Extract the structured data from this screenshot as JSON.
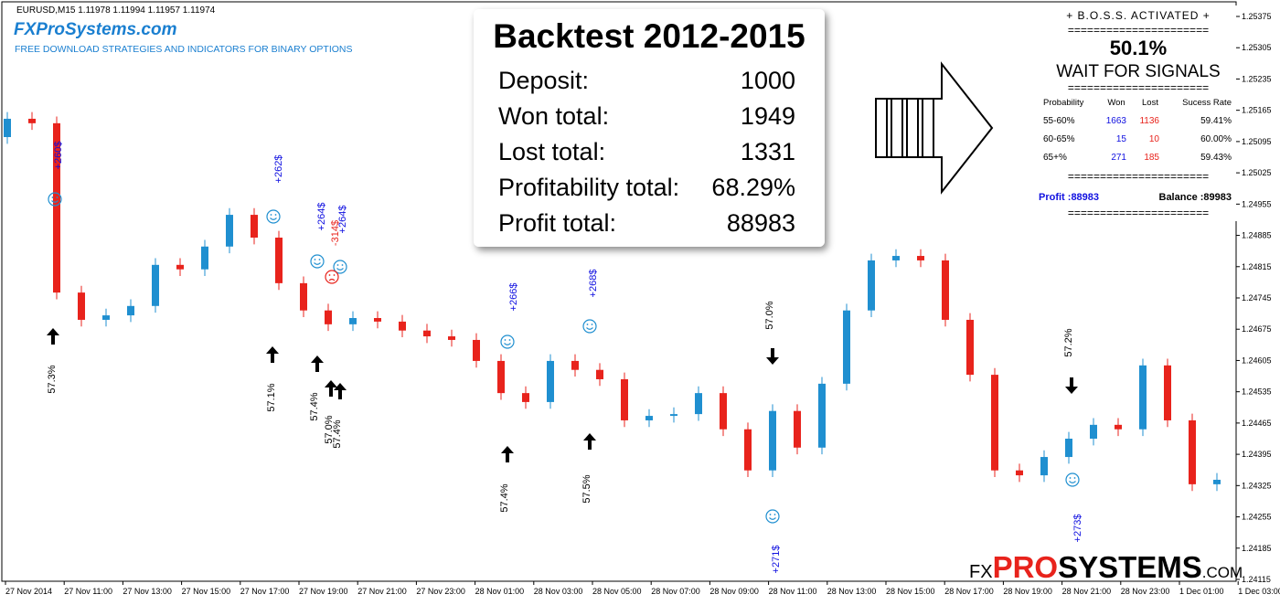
{
  "header": {
    "symbol": "EURUSD,M15  1.11978 1.11994 1.11957 1.11974",
    "brand": "FXProSystems.com",
    "tagline": "FREE DOWNLOAD STRATEGIES AND INDICATORS FOR BINARY OPTIONS"
  },
  "chart_data": {
    "type": "candlestick",
    "up_color": "#1f8fd0",
    "down_color": "#e8231c",
    "ylim": [
      1.24115,
      1.25375
    ],
    "yticks": [
      1.25375,
      1.25305,
      1.25235,
      1.25165,
      1.25095,
      1.25025,
      1.24955,
      1.24885,
      1.24815,
      1.24745,
      1.24675,
      1.24605,
      1.24535,
      1.24465,
      1.24395,
      1.24325,
      1.24255,
      1.24185,
      1.24115
    ],
    "x_labels": [
      "27 Nov 2014",
      "27 Nov 11:00",
      "27 Nov 13:00",
      "27 Nov 15:00",
      "27 Nov 17:00",
      "27 Nov 19:00",
      "27 Nov 21:00",
      "27 Nov 23:00",
      "28 Nov 01:00",
      "28 Nov 03:00",
      "28 Nov 05:00",
      "28 Nov 07:00",
      "28 Nov 09:00",
      "28 Nov 11:00",
      "28 Nov 13:00",
      "28 Nov 15:00",
      "28 Nov 17:00",
      "28 Nov 19:00",
      "28 Nov 21:00",
      "28 Nov 23:00",
      "1 Dec 01:00",
      "1 Dec 03:00"
    ],
    "ohlc": [
      [
        1.25105,
        1.25161,
        1.2509,
        1.25146
      ],
      [
        1.25146,
        1.25161,
        1.25121,
        1.25136
      ],
      [
        1.25136,
        1.25151,
        1.24742,
        1.24757
      ],
      [
        1.24757,
        1.24772,
        1.24681,
        1.24696
      ],
      [
        1.24696,
        1.24721,
        1.24681,
        1.24706
      ],
      [
        1.24706,
        1.24742,
        1.24691,
        1.24727
      ],
      [
        1.24727,
        1.24834,
        1.24712,
        1.24819
      ],
      [
        1.24819,
        1.24834,
        1.24794,
        1.24809
      ],
      [
        1.24809,
        1.24875,
        1.24794,
        1.2486
      ],
      [
        1.2486,
        1.24946,
        1.24845,
        1.24931
      ],
      [
        1.24931,
        1.24946,
        1.24865,
        1.2488
      ],
      [
        1.2488,
        1.24895,
        1.24763,
        1.24778
      ],
      [
        1.24778,
        1.24793,
        1.24702,
        1.24717
      ],
      [
        1.24717,
        1.24732,
        1.24671,
        1.24686
      ],
      [
        1.24686,
        1.24715,
        1.24671,
        1.247
      ],
      [
        1.247,
        1.24715,
        1.24677,
        1.24692
      ],
      [
        1.24692,
        1.24707,
        1.24657,
        1.24672
      ],
      [
        1.24672,
        1.24687,
        1.24644,
        1.24659
      ],
      [
        1.24659,
        1.24674,
        1.24636,
        1.24651
      ],
      [
        1.24651,
        1.24666,
        1.24589,
        1.24604
      ],
      [
        1.24604,
        1.24619,
        1.24517,
        1.24532
      ],
      [
        1.24532,
        1.24547,
        1.24497,
        1.24512
      ],
      [
        1.24512,
        1.24619,
        1.24497,
        1.24604
      ],
      [
        1.24604,
        1.24619,
        1.24569,
        1.24584
      ],
      [
        1.24584,
        1.24599,
        1.24548,
        1.24563
      ],
      [
        1.24563,
        1.24578,
        1.24456,
        1.24471
      ],
      [
        1.24471,
        1.24496,
        1.24456,
        1.24481
      ],
      [
        1.24481,
        1.245,
        1.24466,
        1.24485
      ],
      [
        1.24485,
        1.24547,
        1.2447,
        1.24532
      ],
      [
        1.24532,
        1.24547,
        1.24436,
        1.24451
      ],
      [
        1.24451,
        1.24466,
        1.24344,
        1.24359
      ],
      [
        1.24359,
        1.24507,
        1.24344,
        1.24492
      ],
      [
        1.24492,
        1.24507,
        1.24395,
        1.2441
      ],
      [
        1.2441,
        1.24568,
        1.24395,
        1.24553
      ],
      [
        1.24553,
        1.24732,
        1.24538,
        1.24717
      ],
      [
        1.24717,
        1.24844,
        1.24702,
        1.24829
      ],
      [
        1.24829,
        1.24854,
        1.24814,
        1.24839
      ],
      [
        1.24839,
        1.24854,
        1.24814,
        1.24829
      ],
      [
        1.24829,
        1.24844,
        1.24681,
        1.24696
      ],
      [
        1.24696,
        1.24711,
        1.24558,
        1.24573
      ],
      [
        1.24573,
        1.24588,
        1.24344,
        1.24359
      ],
      [
        1.24359,
        1.24374,
        1.24333,
        1.24348
      ],
      [
        1.24348,
        1.24404,
        1.24333,
        1.24389
      ],
      [
        1.24389,
        1.24445,
        1.24374,
        1.2443
      ],
      [
        1.2443,
        1.24476,
        1.24415,
        1.24461
      ],
      [
        1.24461,
        1.24476,
        1.24436,
        1.24451
      ],
      [
        1.24451,
        1.24609,
        1.24436,
        1.24594
      ],
      [
        1.24594,
        1.24609,
        1.24456,
        1.24471
      ],
      [
        1.24471,
        1.24486,
        1.24313,
        1.24328
      ],
      [
        1.24328,
        1.24353,
        1.24313,
        1.24338
      ]
    ],
    "annotations": [
      "+260$",
      "+262$",
      "+264$",
      "-314$",
      "+264$",
      "+266$",
      "+268$",
      "+271$",
      "+273$",
      "57.3%",
      "57.1%",
      "57.4%",
      "57.0%",
      "57.4%",
      "57.4%",
      "57.5%",
      "57.0%",
      "57.2%"
    ]
  },
  "backtest": {
    "title": "Backtest 2012-2015",
    "rows": [
      [
        "Deposit:",
        "1000"
      ],
      [
        "Won total:",
        "1949"
      ],
      [
        "Lost total:",
        "1331"
      ],
      [
        "Profitability total:",
        "68.29%"
      ],
      [
        "Profit total:",
        "88983"
      ]
    ]
  },
  "panel": {
    "title": "+ B.O.S.S. ACTIVATED +",
    "separator": "======================",
    "percent": "50.1%",
    "status": "WAIT FOR SIGNALS",
    "table": {
      "header": [
        "Probability",
        "Won",
        "Lost",
        "Sucess Rate"
      ],
      "rows": [
        [
          "55-60%",
          "1663",
          "1136",
          "59.41%"
        ],
        [
          "60-65%",
          "15",
          "10",
          "60.00%"
        ],
        [
          "65+%",
          "271",
          "185",
          "59.43%"
        ]
      ]
    },
    "profit": "Profit :88983",
    "balance": "Balance :89983"
  },
  "watermark": [
    "FX",
    "PRO",
    "SYSTEMS",
    ".COM"
  ]
}
